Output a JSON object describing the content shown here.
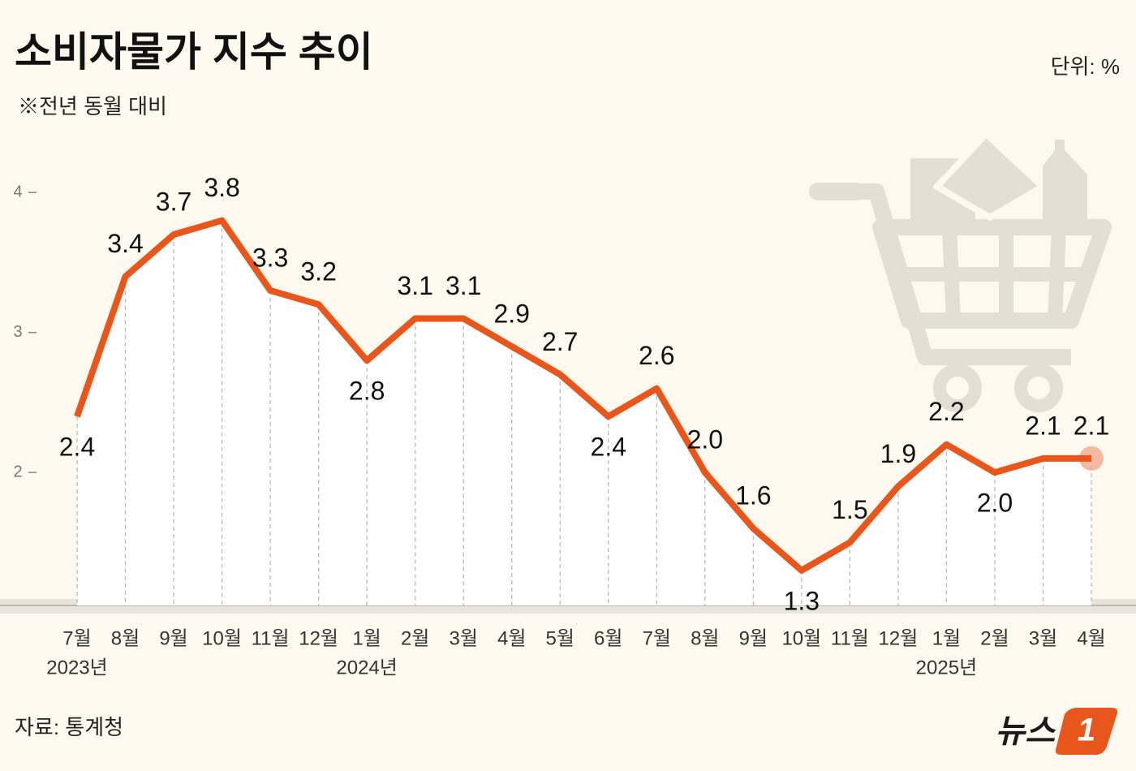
{
  "chart_data": {
    "type": "line",
    "title": "소비자물가 지수 추이",
    "subtitle": "※전년 동월 대비",
    "unit_label": "단위:  %",
    "source": "자료: 통계청",
    "logo_text": "뉴스",
    "logo_mark": "1",
    "categories": [
      "7월",
      "8월",
      "9월",
      "10월",
      "11월",
      "12월",
      "1월",
      "2월",
      "3월",
      "4월",
      "5월",
      "6월",
      "7월",
      "8월",
      "9월",
      "10월",
      "11월",
      "12월",
      "1월",
      "2월",
      "3월",
      "4월"
    ],
    "years": [
      "2023년",
      null,
      null,
      null,
      null,
      null,
      "2024년",
      null,
      null,
      null,
      null,
      null,
      null,
      null,
      null,
      null,
      null,
      null,
      "2025년",
      null,
      null,
      null
    ],
    "values": [
      2.4,
      3.4,
      3.7,
      3.8,
      3.3,
      3.2,
      2.8,
      3.1,
      3.1,
      2.9,
      2.7,
      2.4,
      2.6,
      2.0,
      1.6,
      1.3,
      1.5,
      1.9,
      2.2,
      2.0,
      2.1,
      2.1
    ],
    "value_labels": [
      "2.4",
      "3.4",
      "3.7",
      "3.8",
      "3.3",
      "3.2",
      "2.8",
      "3.1",
      "3.1",
      "2.9",
      "2.7",
      "2.4",
      "2.6",
      "2.0",
      "1.6",
      "1.3",
      "1.5",
      "1.9",
      "2.2",
      "2.0",
      "2.1",
      "2.1"
    ],
    "color": "#e8561c",
    "ylim": [
      1.05,
      4.5
    ],
    "yticks": [
      2,
      3,
      4
    ]
  }
}
